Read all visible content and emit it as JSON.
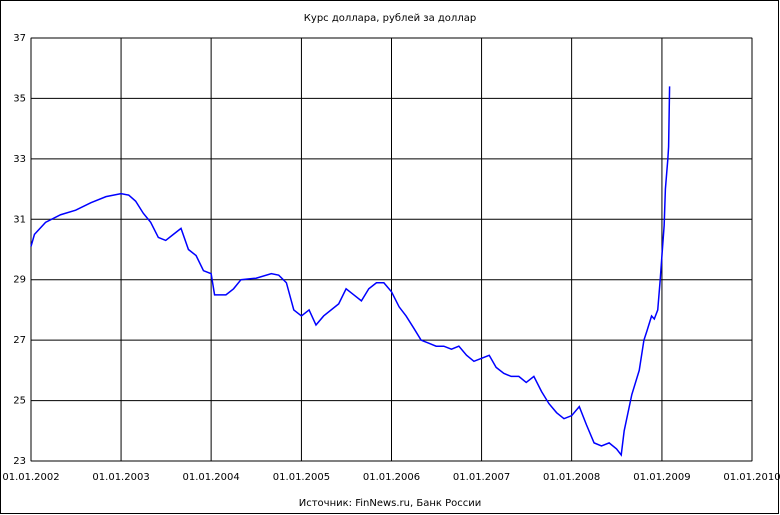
{
  "chart_data": {
    "type": "line",
    "title": "Курс доллара, рублей за доллар",
    "source": "Источник: FinNews.ru, Банк России",
    "xlim": [
      "2002-01-01",
      "2010-01-01"
    ],
    "xticks": [
      {
        "value": "2002-01-01",
        "label": "01.01.2002"
      },
      {
        "value": "2003-01-01",
        "label": "01.01.2003"
      },
      {
        "value": "2004-01-01",
        "label": "01.01.2004"
      },
      {
        "value": "2005-01-01",
        "label": "01.01.2005"
      },
      {
        "value": "2006-01-01",
        "label": "01.01.2006"
      },
      {
        "value": "2007-01-01",
        "label": "01.01.2007"
      },
      {
        "value": "2008-01-01",
        "label": "01.01.2008"
      },
      {
        "value": "2009-01-01",
        "label": "01.01.2009"
      },
      {
        "value": "2010-01-01",
        "label": "01.01.2010"
      }
    ],
    "ylim": [
      23,
      37
    ],
    "yticks": [
      23,
      25,
      27,
      29,
      31,
      33,
      35,
      37
    ],
    "grid": true,
    "series": [
      {
        "color": "#0000ff",
        "x": [
          "2002-01-01",
          "2002-01-15",
          "2002-03-01",
          "2002-05-01",
          "2002-07-01",
          "2002-09-01",
          "2002-11-01",
          "2003-01-01",
          "2003-02-01",
          "2003-03-01",
          "2003-04-01",
          "2003-05-01",
          "2003-06-01",
          "2003-07-01",
          "2003-08-01",
          "2003-09-01",
          "2003-10-01",
          "2003-11-01",
          "2003-12-01",
          "2004-01-01",
          "2004-01-15",
          "2004-03-01",
          "2004-04-01",
          "2004-05-01",
          "2004-07-01",
          "2004-09-01",
          "2004-10-01",
          "2004-11-01",
          "2004-12-01",
          "2005-01-01",
          "2005-02-01",
          "2005-03-01",
          "2005-04-01",
          "2005-06-01",
          "2005-07-01",
          "2005-08-01",
          "2005-09-01",
          "2005-10-01",
          "2005-11-01",
          "2005-12-01",
          "2006-01-01",
          "2006-02-01",
          "2006-03-01",
          "2006-04-01",
          "2006-05-01",
          "2006-06-01",
          "2006-07-01",
          "2006-08-01",
          "2006-09-01",
          "2006-10-01",
          "2006-11-01",
          "2006-12-01",
          "2007-01-01",
          "2007-02-01",
          "2007-03-01",
          "2007-04-01",
          "2007-05-01",
          "2007-06-01",
          "2007-07-01",
          "2007-08-01",
          "2007-09-01",
          "2007-10-01",
          "2007-11-01",
          "2007-12-01",
          "2008-01-01",
          "2008-02-01",
          "2008-03-01",
          "2008-04-01",
          "2008-05-01",
          "2008-06-01",
          "2008-07-01",
          "2008-07-20",
          "2008-08-01",
          "2008-09-01",
          "2008-10-01",
          "2008-10-20",
          "2008-11-01",
          "2008-11-20",
          "2008-12-01",
          "2008-12-15",
          "2008-12-25",
          "2009-01-01",
          "2009-01-10",
          "2009-01-15",
          "2009-01-20",
          "2009-01-25",
          "2009-01-28",
          "2009-02-01"
        ],
        "values": [
          30.1,
          30.5,
          30.9,
          31.15,
          31.3,
          31.55,
          31.75,
          31.85,
          31.8,
          31.6,
          31.2,
          30.9,
          30.4,
          30.3,
          30.5,
          30.7,
          30.0,
          29.8,
          29.3,
          29.2,
          28.5,
          28.5,
          28.7,
          29.0,
          29.05,
          29.2,
          29.15,
          28.9,
          28.0,
          27.8,
          28.0,
          27.5,
          27.8,
          28.2,
          28.7,
          28.5,
          28.3,
          28.7,
          28.9,
          28.9,
          28.6,
          28.1,
          27.8,
          27.4,
          27.0,
          26.9,
          26.8,
          26.8,
          26.7,
          26.8,
          26.5,
          26.3,
          26.4,
          26.5,
          26.1,
          25.9,
          25.8,
          25.8,
          25.6,
          25.8,
          25.3,
          24.9,
          24.6,
          24.4,
          24.5,
          24.8,
          24.2,
          23.6,
          23.5,
          23.6,
          23.4,
          23.2,
          24.0,
          25.2,
          26.0,
          27.0,
          27.3,
          27.8,
          27.7,
          28.0,
          29.0,
          29.8,
          30.8,
          32.0,
          32.5,
          33.0,
          33.4,
          35.4
        ]
      }
    ]
  }
}
